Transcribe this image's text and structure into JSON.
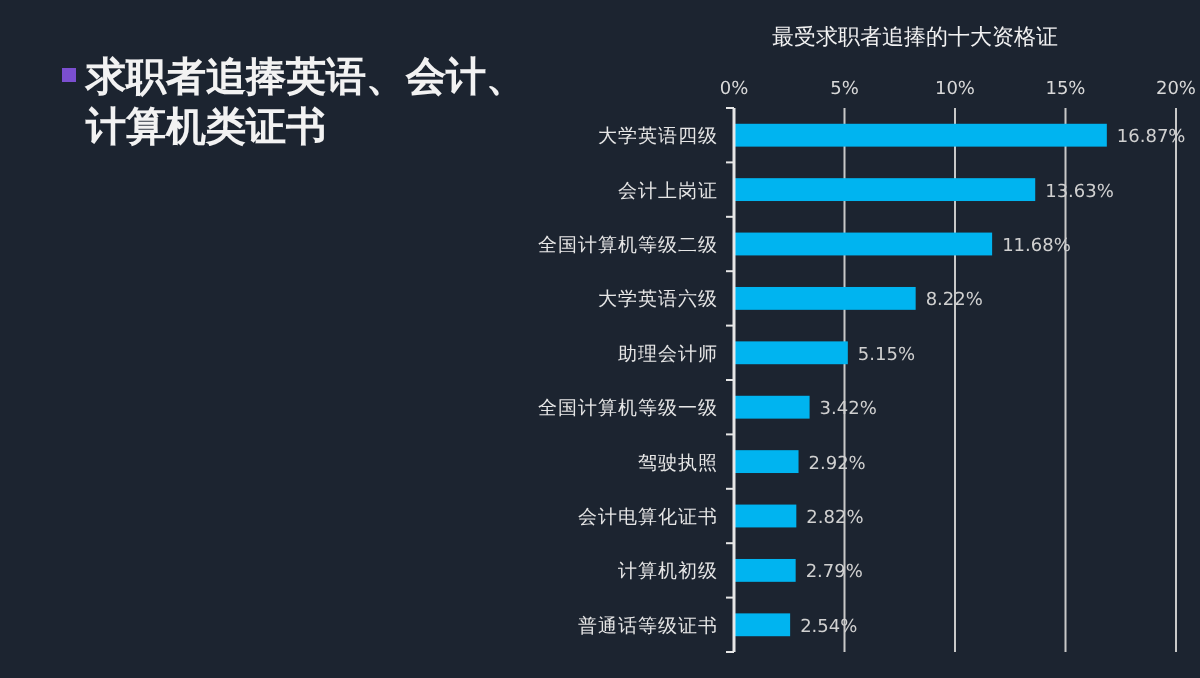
{
  "chart_data": {
    "type": "bar",
    "orientation": "horizontal",
    "title": "求职者追捧英语、会计、计算机类证书",
    "subtitle": "最受求职者追捧的十大资格证",
    "categories": [
      "大学英语四级",
      "会计上岗证",
      "全国计算机等级二级",
      "大学英语六级",
      "助理会计师",
      "全国计算机等级一级",
      "驾驶执照",
      "会计电算化证书",
      "计算机初级",
      "普通话等级证书"
    ],
    "values": [
      16.87,
      13.63,
      11.68,
      8.22,
      5.15,
      3.42,
      2.92,
      2.82,
      2.79,
      2.54
    ],
    "color": "#00b4f0",
    "xlim": [
      0,
      20
    ],
    "xticks": [
      {
        "value": 0,
        "label": "0%"
      },
      {
        "value": 5,
        "label": "5%"
      },
      {
        "value": 10,
        "label": "10%"
      },
      {
        "value": 15,
        "label": "15%"
      },
      {
        "value": 20,
        "label": "20%"
      }
    ],
    "value_labels": [
      "16.87%",
      "13.63%",
      "11.68%",
      "8.22%",
      "5.15%",
      "3.42%",
      "2.92%",
      "2.82%",
      "2.79%",
      "2.54%"
    ],
    "grid": "x"
  }
}
